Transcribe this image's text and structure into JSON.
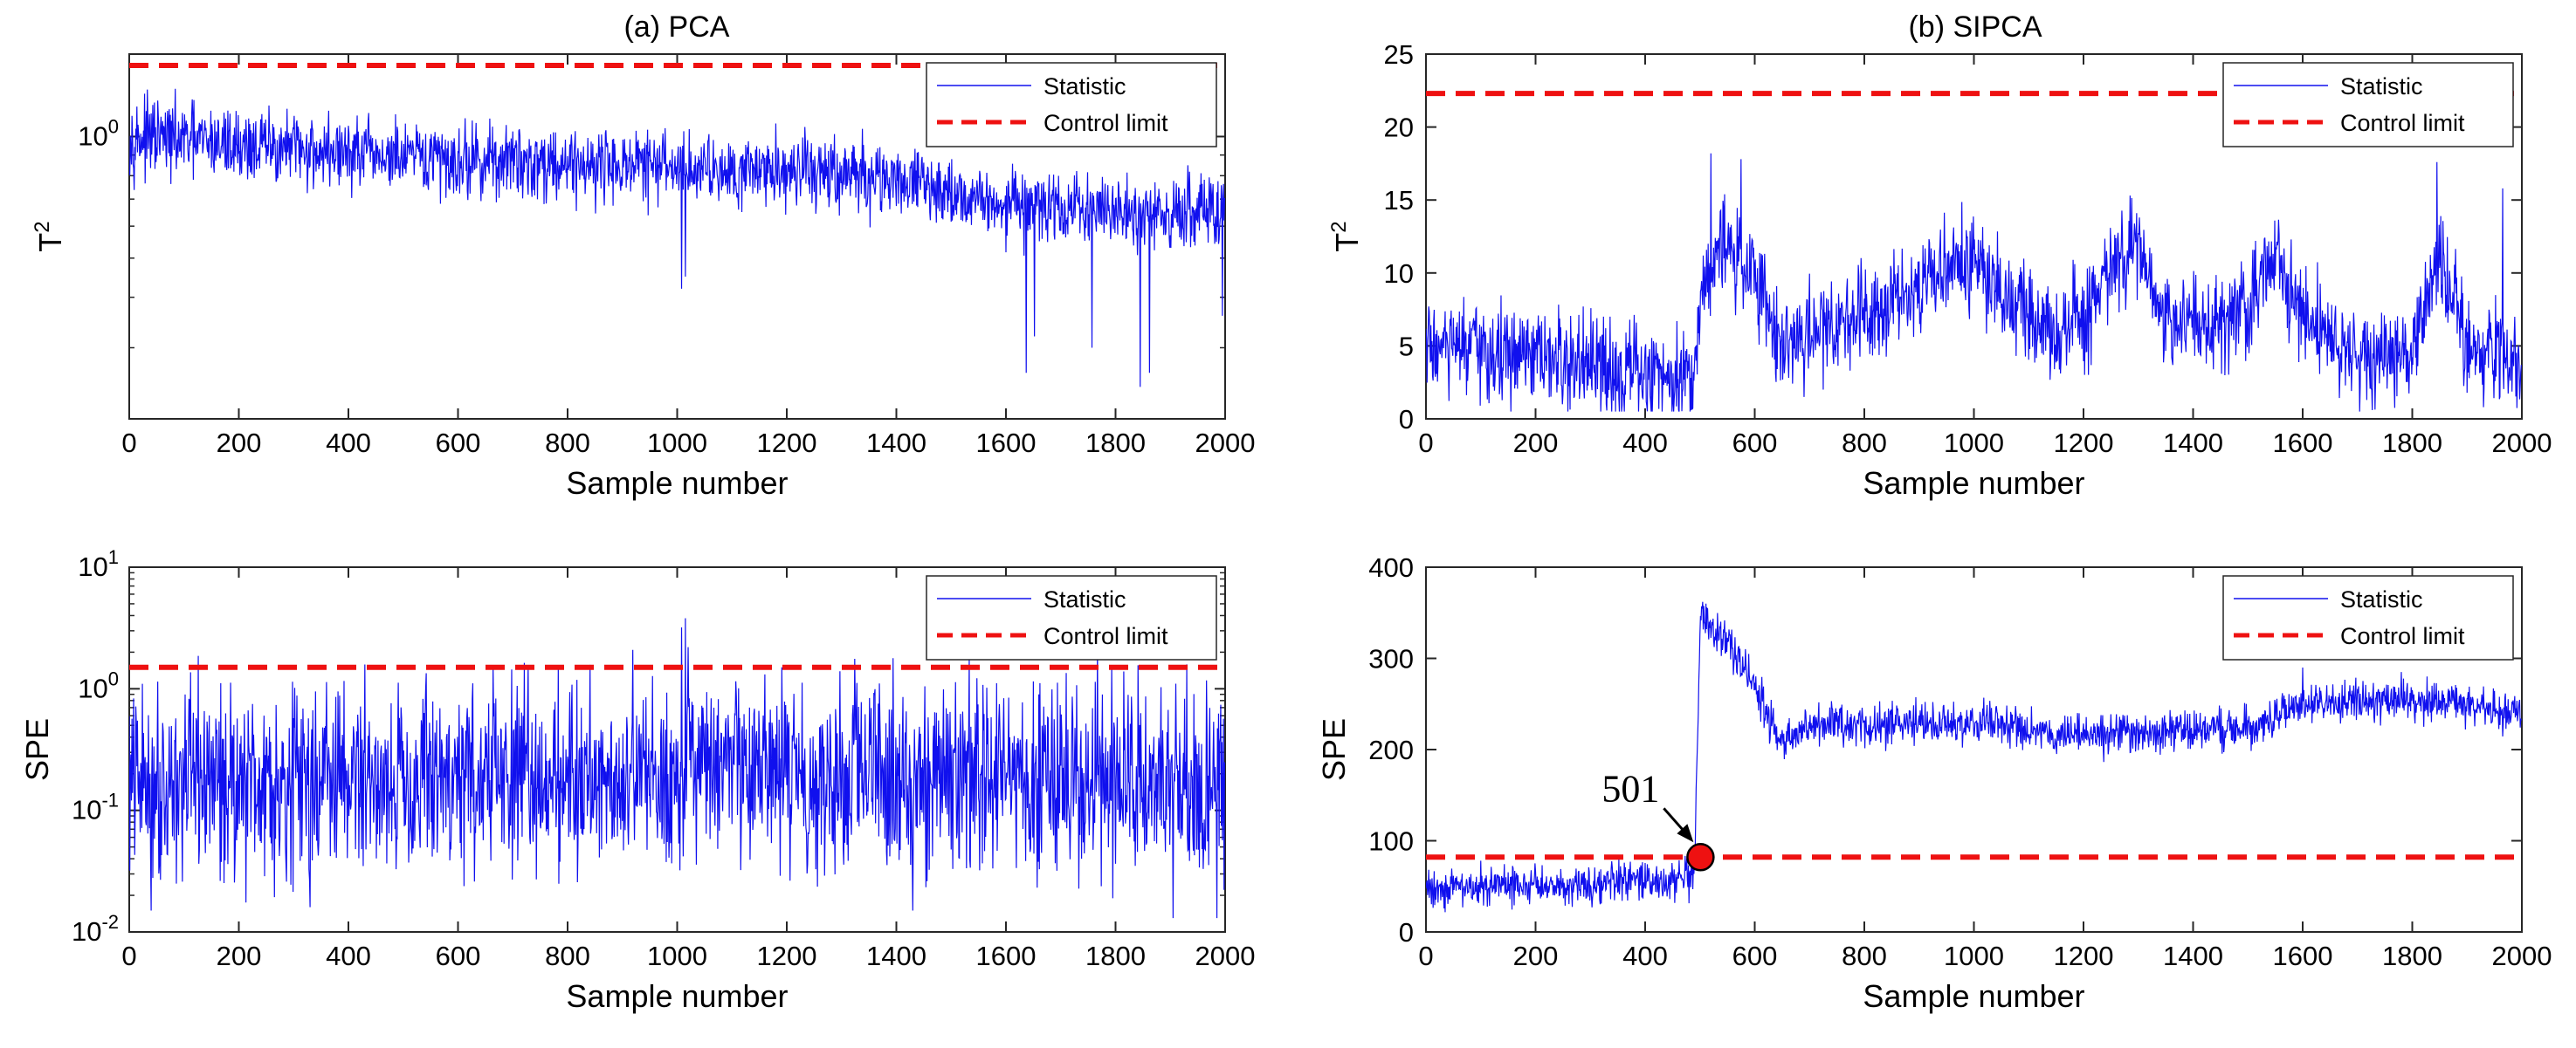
{
  "figure": {
    "panel_a_title": "(a) PCA",
    "panel_b_title": "(b) SIPCA"
  },
  "colors": {
    "statistic": "#1010ee",
    "control_limit": "#ee1111",
    "marker": "#ee1111"
  },
  "chart_data": [
    {
      "id": "pca_t2",
      "type": "line",
      "title": "(a) PCA",
      "xlabel": "Sample number",
      "ylabel": "T",
      "ylabel_sup": "2",
      "yscale": "log",
      "xlim": [
        0,
        2000
      ],
      "ylim": [
        0.2,
        1.6
      ],
      "xticks": [
        0,
        200,
        400,
        600,
        800,
        1000,
        1200,
        1400,
        1600,
        1800,
        2000
      ],
      "xtick_labels": [
        "0",
        "200",
        "400",
        "600",
        "800",
        "1000",
        "1200",
        "1400",
        "1600",
        "1800",
        "2000"
      ],
      "yticks": [
        1
      ],
      "ytick_labels": [
        {
          "base": "10",
          "exp": "0"
        }
      ],
      "legend": [
        "Statistic",
        "Control limit"
      ],
      "legend_position": "top-right",
      "control_limit": 1.5,
      "series_profile": {
        "name": "Statistic",
        "n": 2000,
        "points": [
          [
            0,
            1.0
          ],
          [
            300,
            0.93
          ],
          [
            500,
            0.88
          ],
          [
            800,
            0.86
          ],
          [
            1000,
            0.84
          ],
          [
            1200,
            0.83
          ],
          [
            1400,
            0.78
          ],
          [
            1600,
            0.68
          ],
          [
            1800,
            0.65
          ],
          [
            2000,
            0.64
          ]
        ],
        "noise": 0.045,
        "spikes": [
          [
            1008,
            0.42
          ],
          [
            1015,
            0.45
          ],
          [
            1637,
            0.26
          ],
          [
            1652,
            0.32
          ],
          [
            1757,
            0.3
          ],
          [
            1845,
            0.24
          ],
          [
            1862,
            0.26
          ],
          [
            1995,
            0.36
          ]
        ]
      }
    },
    {
      "id": "pca_spe",
      "type": "line",
      "xlabel": "Sample number",
      "ylabel": "SPE",
      "yscale": "log",
      "xlim": [
        0,
        2000
      ],
      "ylim": [
        0.01,
        10
      ],
      "xticks": [
        0,
        200,
        400,
        600,
        800,
        1000,
        1200,
        1400,
        1600,
        1800,
        2000
      ],
      "xtick_labels": [
        "0",
        "200",
        "400",
        "600",
        "800",
        "1000",
        "1200",
        "1400",
        "1600",
        "1800",
        "2000"
      ],
      "yticks": [
        0.01,
        0.1,
        1,
        10
      ],
      "ytick_labels": [
        {
          "base": "10",
          "exp": "-2"
        },
        {
          "base": "10",
          "exp": "-1"
        },
        {
          "base": "10",
          "exp": "0"
        },
        {
          "base": "10",
          "exp": "1"
        }
      ],
      "legend": [
        "Statistic",
        "Control limit"
      ],
      "legend_position": "top-right",
      "control_limit": 1.5,
      "series_profile": {
        "name": "Statistic",
        "n": 2000,
        "points": [
          [
            0,
            0.17
          ],
          [
            1000,
            0.2
          ],
          [
            2000,
            0.18
          ]
        ],
        "noise": 0.38,
        "spikes": [
          [
            210,
            0.62
          ],
          [
            340,
            0.95
          ],
          [
            1008,
            3.2
          ],
          [
            1015,
            3.8
          ],
          [
            1020,
            2.2
          ],
          [
            1650,
            1.15
          ],
          [
            1660,
            0.9
          ],
          [
            40,
            0.015
          ],
          [
            330,
            0.016
          ],
          [
            1430,
            0.015
          ],
          [
            1905,
            0.013
          ],
          [
            1985,
            0.013
          ]
        ]
      }
    },
    {
      "id": "sipca_t2",
      "type": "line",
      "title": "(b) SIPCA",
      "xlabel": "Sample number",
      "ylabel": "T",
      "ylabel_sup": "2",
      "yscale": "linear",
      "xlim": [
        0,
        2000
      ],
      "ylim": [
        0,
        25
      ],
      "xticks": [
        0,
        200,
        400,
        600,
        800,
        1000,
        1200,
        1400,
        1600,
        1800,
        2000
      ],
      "xtick_labels": [
        "0",
        "200",
        "400",
        "600",
        "800",
        "1000",
        "1200",
        "1400",
        "1600",
        "1800",
        "2000"
      ],
      "yticks": [
        0,
        5,
        10,
        15,
        20,
        25
      ],
      "ytick_labels": [
        "0",
        "5",
        "10",
        "15",
        "20",
        "25"
      ],
      "legend": [
        "Statistic",
        "Control limit"
      ],
      "legend_position": "top-right",
      "control_limit": 22.3,
      "series_profile": {
        "name": "Statistic",
        "n": 2000,
        "points": [
          [
            0,
            5
          ],
          [
            100,
            4.5
          ],
          [
            200,
            4
          ],
          [
            400,
            3
          ],
          [
            490,
            3.2
          ],
          [
            500,
            8
          ],
          [
            530,
            12
          ],
          [
            600,
            10
          ],
          [
            650,
            5
          ],
          [
            800,
            7.5
          ],
          [
            1000,
            11
          ],
          [
            1060,
            8
          ],
          [
            1150,
            6
          ],
          [
            1200,
            6.5
          ],
          [
            1260,
            11
          ],
          [
            1300,
            11
          ],
          [
            1360,
            6.5
          ],
          [
            1500,
            7.5
          ],
          [
            1550,
            11
          ],
          [
            1600,
            7
          ],
          [
            1700,
            4
          ],
          [
            1800,
            5
          ],
          [
            1850,
            11
          ],
          [
            1900,
            5
          ],
          [
            2000,
            4
          ]
        ],
        "noise": 1.7,
        "spikes": [
          [
            520,
            18.2
          ],
          [
            575,
            17.8
          ],
          [
            1285,
            15.3
          ],
          [
            1845,
            17.6
          ],
          [
            1965,
            15.8
          ],
          [
            690,
            1.5
          ],
          [
            1930,
            0.8
          ]
        ],
        "min": 0.5
      }
    },
    {
      "id": "sipca_spe",
      "type": "line",
      "xlabel": "Sample number",
      "ylabel": "SPE",
      "yscale": "linear",
      "xlim": [
        0,
        2000
      ],
      "ylim": [
        0,
        400
      ],
      "xticks": [
        0,
        200,
        400,
        600,
        800,
        1000,
        1200,
        1400,
        1600,
        1800,
        2000
      ],
      "xtick_labels": [
        "0",
        "200",
        "400",
        "600",
        "800",
        "1000",
        "1200",
        "1400",
        "1600",
        "1800",
        "2000"
      ],
      "yticks": [
        0,
        100,
        200,
        300,
        400
      ],
      "ytick_labels": [
        "0",
        "100",
        "200",
        "300",
        "400"
      ],
      "legend": [
        "Statistic",
        "Control limit"
      ],
      "legend_position": "top-right",
      "control_limit": 82,
      "annotation": {
        "text": "501",
        "x": 501,
        "y": 82
      },
      "series_profile": {
        "name": "Statistic",
        "n": 2000,
        "points": [
          [
            0,
            48
          ],
          [
            250,
            52
          ],
          [
            490,
            57
          ],
          [
            501,
            345
          ],
          [
            560,
            310
          ],
          [
            600,
            270
          ],
          [
            650,
            205
          ],
          [
            700,
            225
          ],
          [
            1000,
            230
          ],
          [
            1200,
            215
          ],
          [
            1500,
            225
          ],
          [
            1600,
            250
          ],
          [
            1800,
            255
          ],
          [
            2000,
            240
          ]
        ],
        "noise": 11,
        "spikes": [
          [
            505,
            362
          ],
          [
            1600,
            290
          ],
          [
            1780,
            285
          ]
        ]
      }
    }
  ]
}
